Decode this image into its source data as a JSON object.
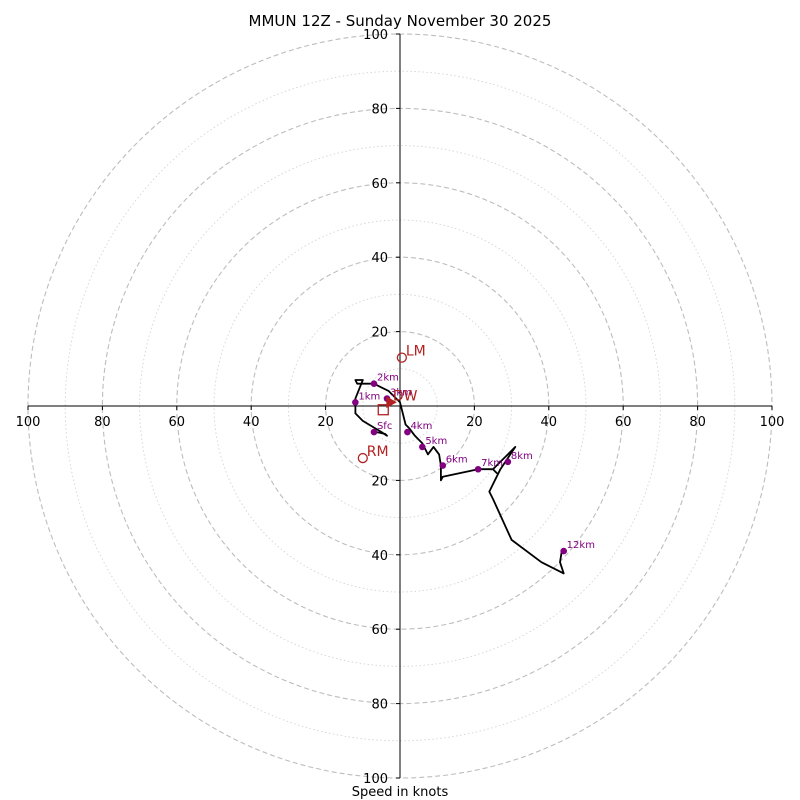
{
  "chart_data": {
    "type": "hodograph",
    "title": "MMUN 12Z - Sunday November 30 2025",
    "xlabel": "Speed in knots",
    "speed_range": [
      0,
      100
    ],
    "rings_major": [
      20,
      40,
      60,
      80,
      100
    ],
    "rings_minor": [
      10,
      30,
      50,
      70,
      90
    ],
    "x_ticks": [
      {
        "value": -100,
        "label": "100"
      },
      {
        "value": -80,
        "label": "80"
      },
      {
        "value": -60,
        "label": "60"
      },
      {
        "value": -40,
        "label": "40"
      },
      {
        "value": -20,
        "label": "20"
      },
      {
        "value": 20,
        "label": "20"
      },
      {
        "value": 40,
        "label": "40"
      },
      {
        "value": 60,
        "label": "60"
      },
      {
        "value": 80,
        "label": "80"
      },
      {
        "value": 100,
        "label": "100"
      }
    ],
    "y_ticks": [
      {
        "value": 100,
        "label": "100"
      },
      {
        "value": 80,
        "label": "80"
      },
      {
        "value": 60,
        "label": "60"
      },
      {
        "value": 40,
        "label": "40"
      },
      {
        "value": 20,
        "label": "20"
      },
      {
        "value": -20,
        "label": "20"
      },
      {
        "value": -40,
        "label": "40"
      },
      {
        "value": -60,
        "label": "60"
      },
      {
        "value": -80,
        "label": "80"
      },
      {
        "value": -100,
        "label": "100"
      }
    ],
    "hodograph": {
      "u": [
        -6.5,
        -4,
        -3.5,
        -5,
        -10,
        -12,
        -12,
        -10,
        -12,
        -11.5,
        -7,
        -3,
        -1,
        0,
        1.5,
        2.5,
        4,
        6,
        7.5,
        9,
        10.5,
        11,
        11,
        11.5,
        21,
        25,
        26,
        25,
        27,
        29,
        31,
        27,
        24,
        25,
        30,
        38,
        44,
        43,
        43.5
      ],
      "v": [
        -7,
        -7.5,
        -8,
        -7,
        -4,
        -2,
        2,
        7,
        7,
        6,
        6,
        4,
        2,
        1,
        -5,
        -6,
        -8,
        -10,
        -13,
        -11,
        -13,
        -16,
        -20,
        -19,
        -17,
        -17,
        -18,
        -17,
        -15,
        -13,
        -11,
        -17,
        -23,
        -25,
        -36,
        -42,
        -45,
        -42,
        -39
      ]
    },
    "height_markers": [
      {
        "label": "Sfc",
        "u": -7,
        "v": -7
      },
      {
        "label": "1km",
        "u": -12,
        "v": 1
      },
      {
        "label": "2km",
        "u": -7,
        "v": 6
      },
      {
        "label": "3km",
        "u": -3.5,
        "v": 2
      },
      {
        "label": "4km",
        "u": 2,
        "v": -7
      },
      {
        "label": "5km",
        "u": 6,
        "v": -11
      },
      {
        "label": "6km",
        "u": 11.5,
        "v": -16
      },
      {
        "label": "7km",
        "u": 21,
        "v": -17
      },
      {
        "label": "8km",
        "u": 29,
        "v": -15
      },
      {
        "label": "12km",
        "u": 44,
        "v": -39
      }
    ],
    "storm_motions": [
      {
        "label": "LM",
        "u": 0.5,
        "v": 13,
        "symbol": "circle",
        "color": "#b22222"
      },
      {
        "label": "RM",
        "u": -10,
        "v": -14,
        "symbol": "circle",
        "color": "#b22222"
      },
      {
        "label": "DW",
        "u": -3,
        "v": 1,
        "symbol": "triangle",
        "color": "#b22222"
      },
      {
        "label": "",
        "u": -4.5,
        "v": -1,
        "symbol": "square",
        "color": "#b22222"
      }
    ]
  }
}
